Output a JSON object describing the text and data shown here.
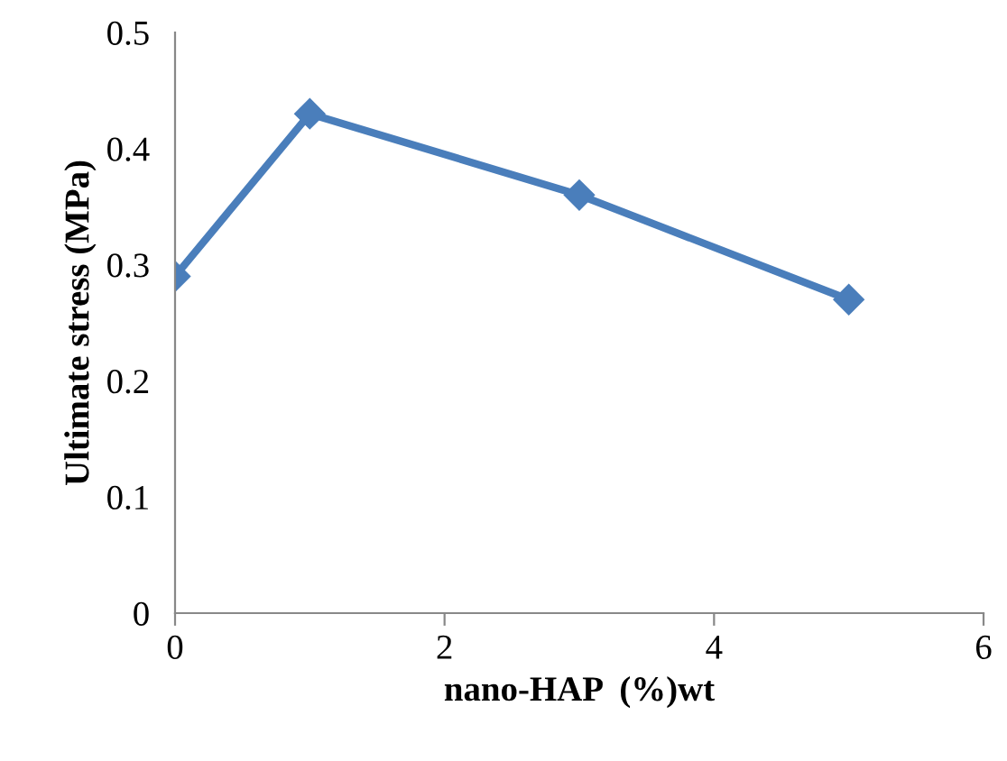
{
  "chart_data": {
    "type": "line",
    "xlabel": "nano-HAP  (%)wt",
    "ylabel": "Ultimate stress (MPa)",
    "x": [
      0,
      1,
      3,
      5
    ],
    "series": [
      {
        "color": "#4a7ebb",
        "values": [
          0.29,
          0.43,
          0.36,
          0.27
        ]
      }
    ],
    "xlim": [
      0,
      6
    ],
    "ylim": [
      0,
      0.5
    ],
    "xticks": [
      0,
      2,
      4,
      6
    ],
    "yticks": [
      0,
      0.1,
      0.2,
      0.3,
      0.4,
      0.5
    ],
    "marker": "diamond",
    "line_style": "solid",
    "grid": false,
    "legend": false
  }
}
